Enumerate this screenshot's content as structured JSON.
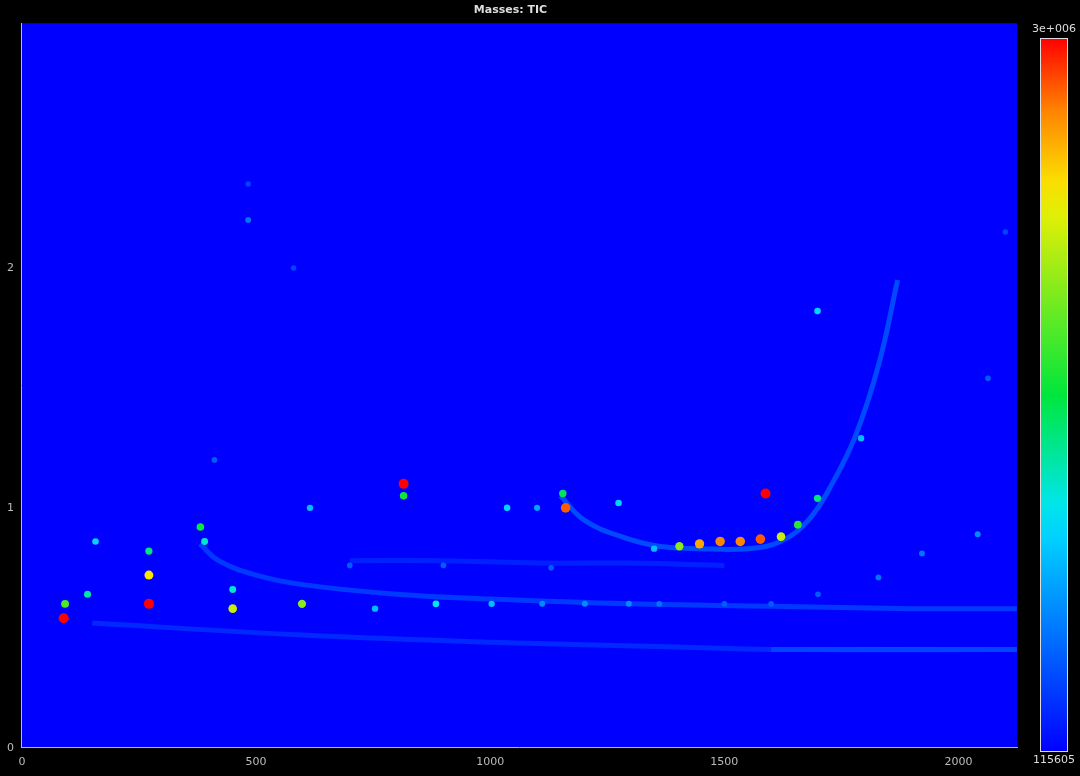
{
  "chart_data": {
    "type": "heatmap",
    "title": "Masses: TIC",
    "xlim": [
      0,
      2125
    ],
    "xticks": [
      0,
      500,
      1000,
      1500,
      2000
    ],
    "ylim": [
      0,
      3.02
    ],
    "yticks": [
      0,
      1,
      2
    ],
    "grid": false,
    "colorbar": {
      "range": [
        115605,
        3000000
      ],
      "ticks": [
        115605,
        {
          "value": 3000000,
          "label": "3e+006"
        }
      ]
    },
    "peaks": {
      "x": [
        89,
        92,
        140,
        157,
        271,
        271,
        271,
        381,
        390,
        411,
        450,
        450,
        483,
        483,
        580,
        598,
        615,
        754,
        815,
        815,
        884,
        1003,
        1036,
        1100,
        1111,
        1155,
        1161,
        1202,
        1274,
        1296,
        1350,
        1361,
        1404,
        1447,
        1491,
        1534,
        1577,
        1588,
        1621,
        1657,
        1699,
        1699,
        1792,
        1829,
        1922,
        2041,
        2063,
        700,
        900,
        1130,
        1500,
        1600,
        1700,
        2100
      ],
      "y": [
        0.54,
        0.6,
        0.64,
        0.86,
        0.6,
        0.72,
        0.82,
        0.92,
        0.86,
        1.2,
        0.58,
        0.66,
        2.2,
        2.35,
        2.0,
        0.6,
        1.0,
        0.58,
        1.1,
        1.05,
        0.6,
        0.6,
        1.0,
        1.0,
        0.6,
        1.06,
        1.0,
        0.6,
        1.02,
        0.6,
        0.83,
        0.6,
        0.84,
        0.85,
        0.86,
        0.86,
        0.87,
        1.06,
        0.88,
        0.93,
        1.04,
        1.82,
        1.29,
        0.71,
        0.81,
        0.89,
        1.54,
        0.76,
        0.76,
        0.75,
        0.6,
        0.6,
        0.64,
        2.15
      ],
      "intensity": [
        3000000,
        1800000,
        1300000,
        1000000,
        3000000,
        2400000,
        1400000,
        1600000,
        1200000,
        500000,
        2200000,
        1200000,
        600000,
        400000,
        400000,
        2000000,
        900000,
        900000,
        3000000,
        1600000,
        1100000,
        900000,
        1000000,
        800000,
        700000,
        1500000,
        2800000,
        700000,
        1000000,
        700000,
        900000,
        600000,
        2000000,
        2600000,
        2700000,
        2700000,
        2800000,
        3000000,
        2200000,
        1700000,
        1400000,
        1000000,
        900000,
        600000,
        600000,
        700000,
        500000,
        500000,
        500000,
        500000,
        500000,
        500000,
        500000,
        400000
      ]
    },
    "bands": [
      {
        "x": [
          150,
          600,
          1000,
          1400,
          1600,
          2125
        ],
        "y": [
          0.52,
          0.47,
          0.44,
          0.42,
          0.41,
          0.41
        ],
        "intensity": 350000
      },
      {
        "x": [
          1600,
          2125
        ],
        "y": [
          0.41,
          0.41
        ],
        "intensity": 700000
      },
      {
        "x": [
          380,
          420,
          500,
          600,
          800,
          1000,
          1300,
          1600,
          1900,
          2125
        ],
        "y": [
          0.85,
          0.78,
          0.72,
          0.68,
          0.64,
          0.62,
          0.6,
          0.59,
          0.58,
          0.58
        ],
        "intensity": 450000
      },
      {
        "x": [
          1150,
          1200,
          1280,
          1360,
          1450,
          1550,
          1620,
          1680,
          1730,
          1780,
          1830,
          1870
        ],
        "y": [
          1.05,
          0.95,
          0.88,
          0.84,
          0.83,
          0.83,
          0.86,
          0.95,
          1.1,
          1.3,
          1.6,
          1.95
        ],
        "intensity": 550000
      },
      {
        "x": [
          700,
          900,
          1100,
          1300,
          1500
        ],
        "y": [
          0.78,
          0.78,
          0.77,
          0.77,
          0.76
        ],
        "intensity": 300000
      }
    ]
  }
}
